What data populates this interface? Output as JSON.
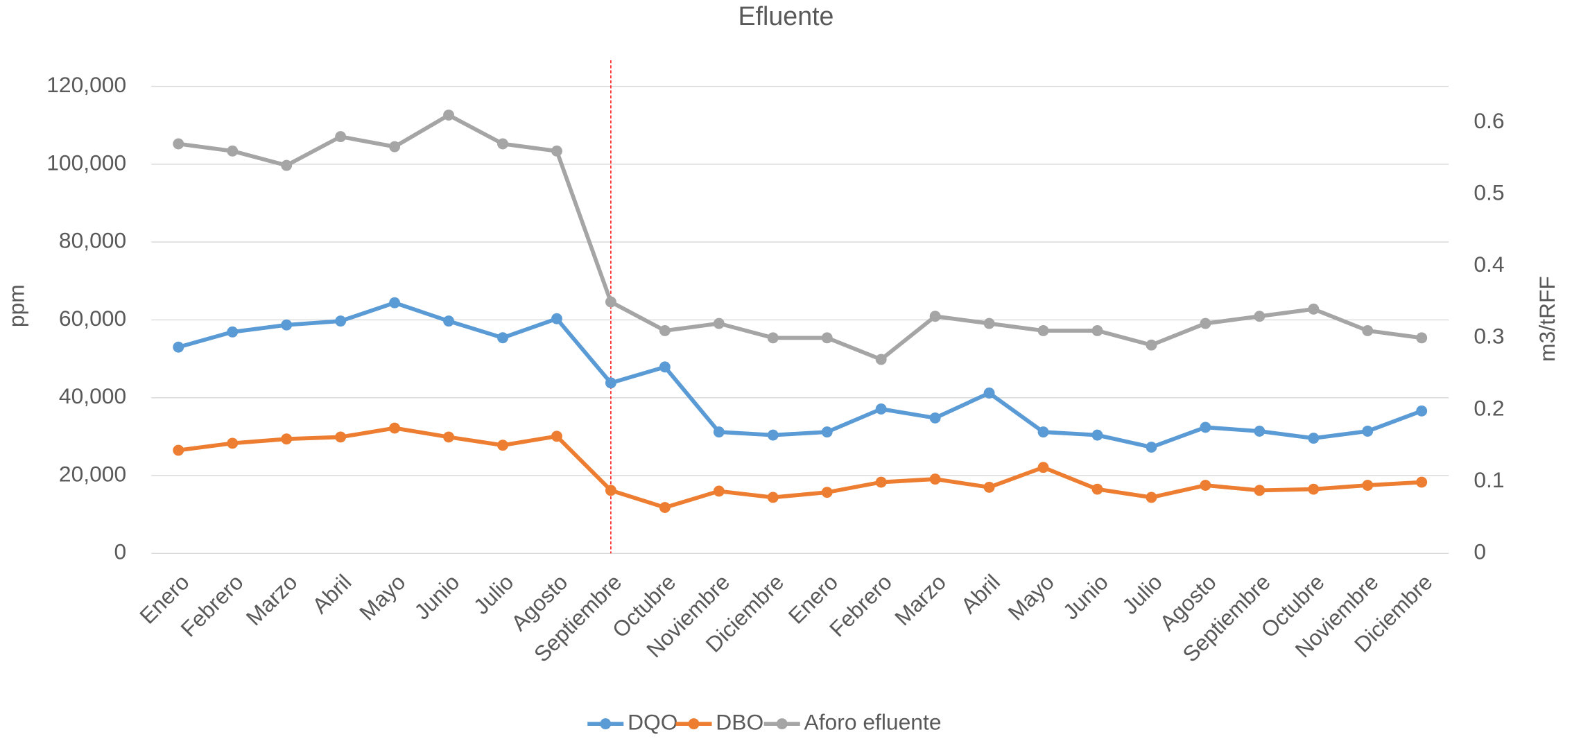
{
  "chart_data": {
    "type": "line",
    "title": "Efluente",
    "y_label": "ppm",
    "y2_label": "m3/tRFF",
    "categories": [
      "Enero",
      "Febrero",
      "Marzo",
      "Abril",
      "Mayo",
      "Junio",
      "Julio",
      "Agosto",
      "Septiembre",
      "Octubre",
      "Noviembre",
      "Diciembre",
      "Enero",
      "Febrero",
      "Marzo",
      "Abril",
      "Mayo",
      "Junio",
      "Julio",
      "Agosto",
      "Septiembre",
      "Octubre",
      "Noviembre",
      "Diciembre"
    ],
    "series": [
      {
        "name": "DQO",
        "color": "#5b9bd5",
        "values": [
          53000,
          56900,
          58700,
          59700,
          64400,
          59700,
          55400,
          60300,
          43800,
          47900,
          31200,
          30400,
          31200,
          37100,
          34800,
          41200,
          31200,
          30400,
          27300,
          32400,
          31400,
          29600,
          31400,
          36600
        ]
      },
      {
        "name": "DBO",
        "color": "#ed7d31",
        "values": [
          26500,
          28300,
          29400,
          29900,
          32200,
          29900,
          27800,
          30100,
          16200,
          11800,
          16000,
          14400,
          15700,
          18300,
          19100,
          17000,
          22100,
          16500,
          14400,
          17500,
          16200,
          16500,
          17500,
          18300
        ]
      },
      {
        "name": "Aforo efluente",
        "color": "#a5a5a5",
        "axis": "y2",
        "values": [
          0.57,
          0.56,
          0.54,
          0.58,
          0.566,
          0.61,
          0.57,
          0.56,
          0.35,
          0.31,
          0.32,
          0.3,
          0.3,
          0.27,
          0.33,
          0.32,
          0.31,
          0.31,
          0.29,
          0.32,
          0.33,
          0.34,
          0.31,
          0.3
        ]
      }
    ],
    "ylim": [
      0,
      120000
    ],
    "yticks": [
      0,
      {
        "value": 20000,
        "label": "20,000"
      },
      {
        "value": 40000,
        "label": "40,000"
      },
      {
        "value": 60000,
        "label": "60,000"
      },
      {
        "value": 80000,
        "label": "80,000"
      },
      {
        "value": 100000,
        "label": "100,000"
      },
      {
        "value": 120000,
        "label": "120,000"
      }
    ],
    "y2lim": [
      0,
      0.65
    ],
    "y2ticks": [
      0,
      0.1,
      0.2,
      0.3,
      0.4,
      0.5,
      0.6
    ],
    "grid": true,
    "legend": "bottom"
  }
}
